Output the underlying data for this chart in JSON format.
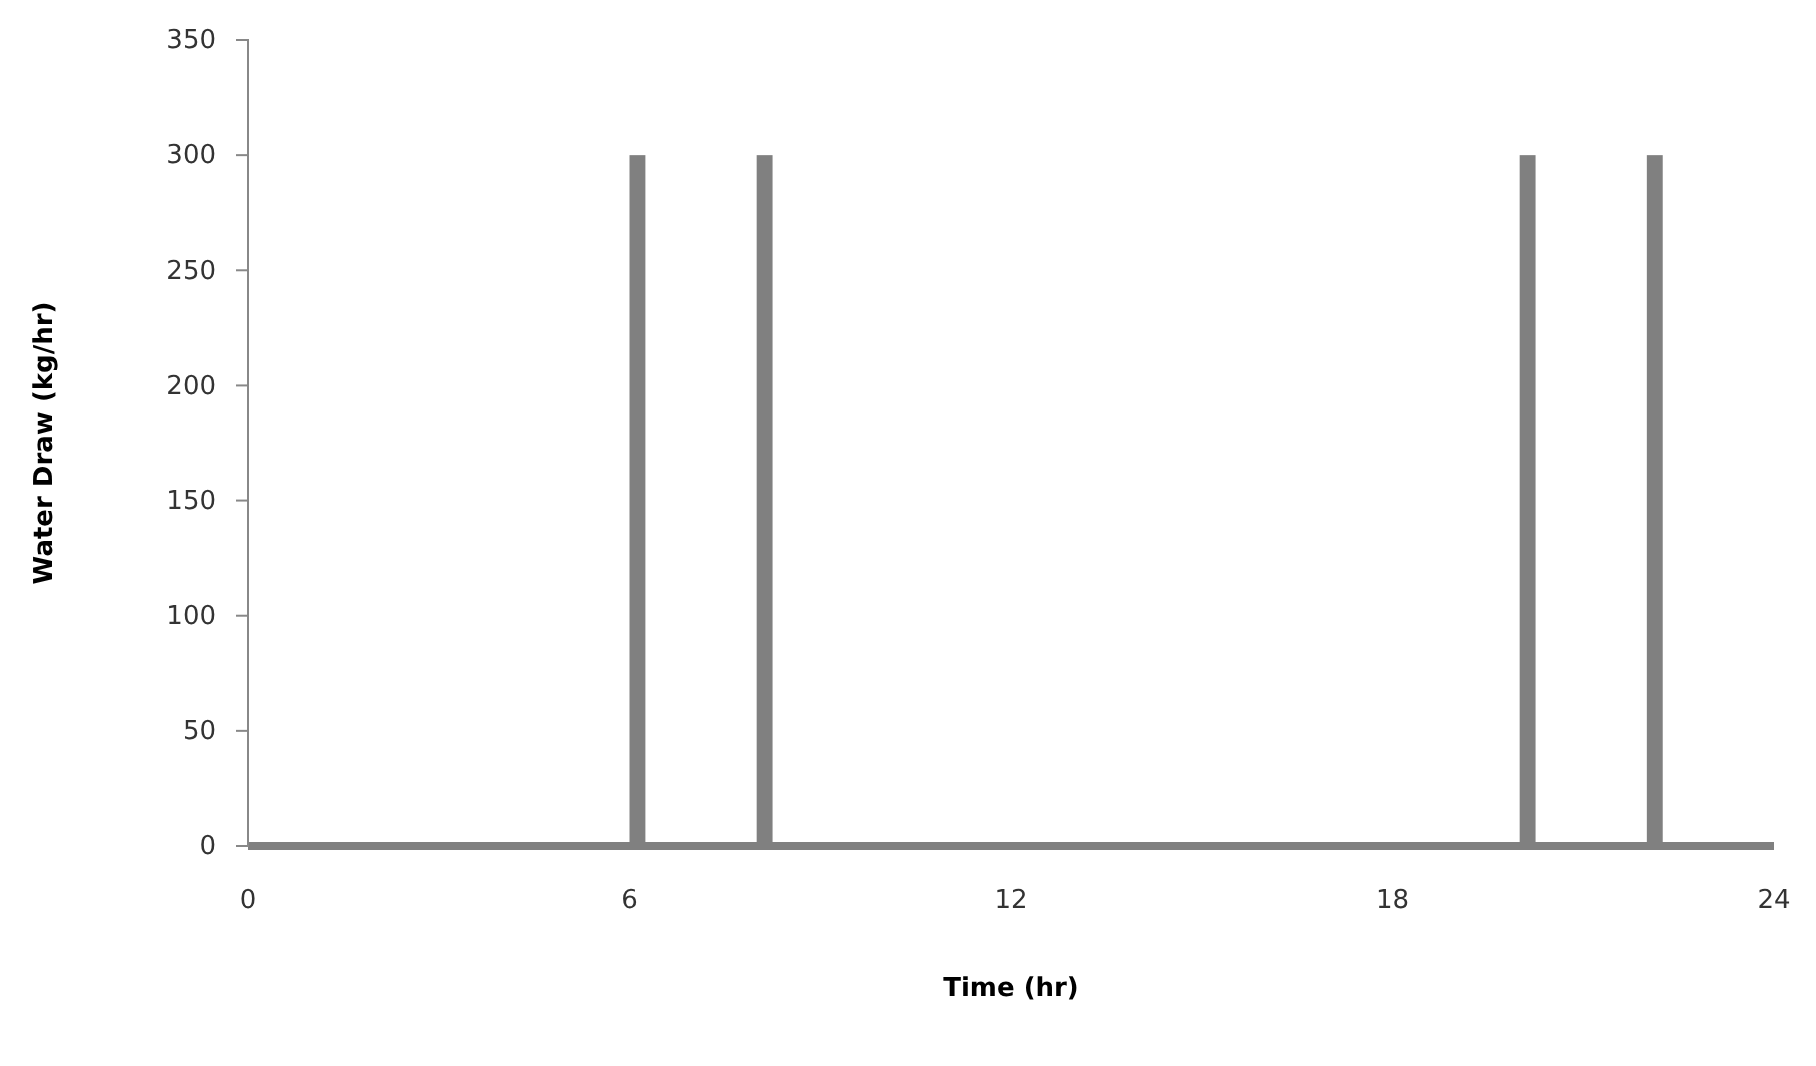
{
  "chart_data": {
    "type": "histogram",
    "xlabel": "Time (hr)",
    "ylabel": "Water Draw (kg/hr)",
    "bins": [
      6,
      6.25,
      8,
      8.25,
      20,
      20.25,
      22,
      22.25
    ],
    "values": [
      300,
      0,
      300,
      0,
      300,
      0,
      300
    ],
    "color": "#808080",
    "xlim": [
      0,
      24
    ],
    "xticks": [
      0,
      6,
      12,
      18,
      24
    ],
    "ylim": [
      0,
      350
    ],
    "yticks": [
      0,
      50,
      100,
      150,
      200,
      250,
      300,
      350
    ],
    "grid": false
  }
}
